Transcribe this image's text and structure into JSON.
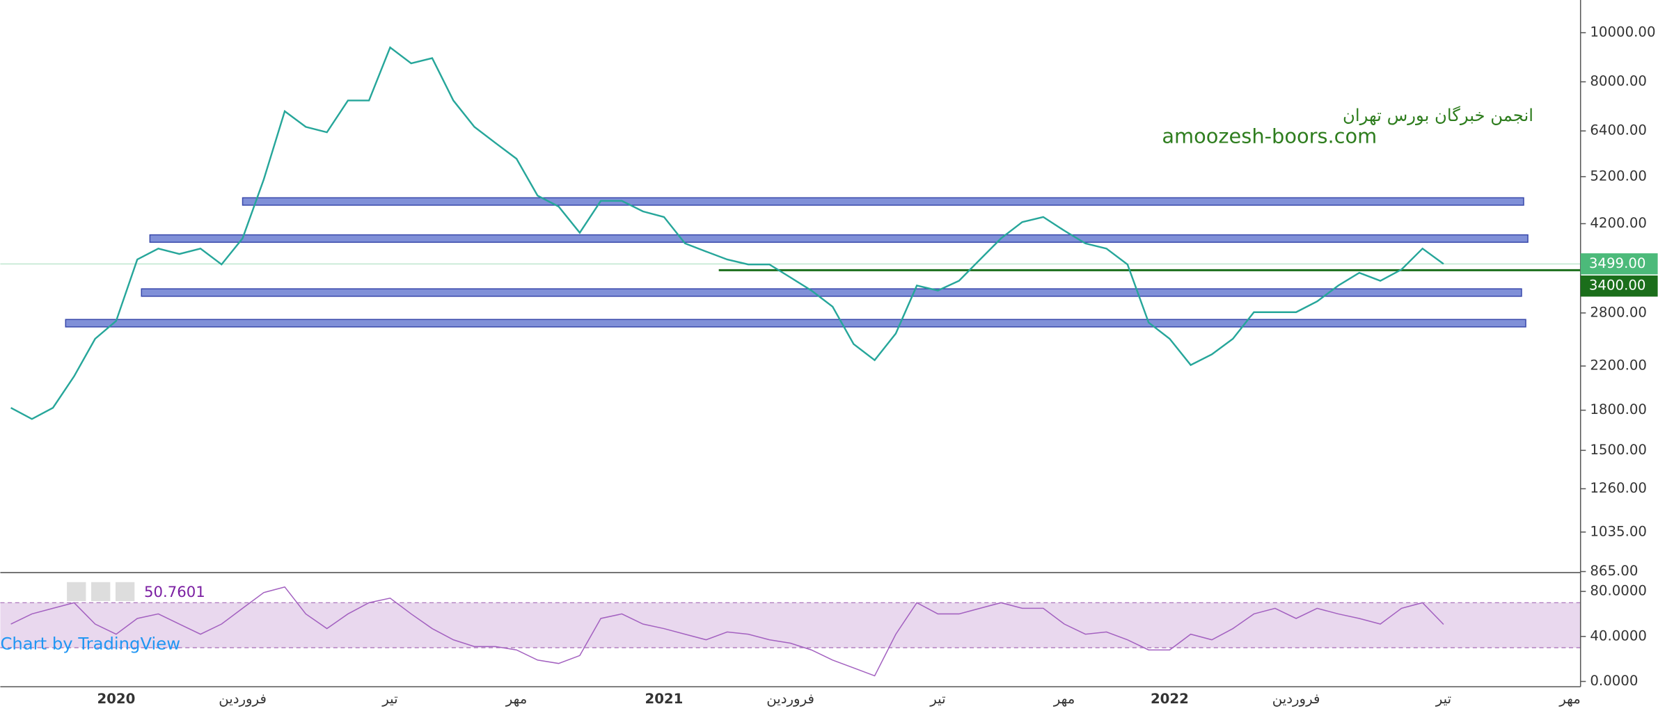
{
  "chart_data": [
    {
      "type": "line",
      "log_scale": true,
      "color": "#26a69a",
      "categories": [
        null,
        null,
        null,
        null,
        null,
        "2020",
        null,
        null,
        null,
        null,
        null,
        "فروردین",
        null,
        null,
        null,
        null,
        null,
        null,
        "تیر",
        null,
        null,
        null,
        null,
        null,
        "مهر",
        null,
        null,
        null,
        null,
        null,
        null,
        "2021",
        null,
        null,
        null,
        null,
        null,
        "فروردین",
        null,
        null,
        null,
        null,
        null,
        null,
        "تیر",
        null,
        null,
        null,
        null,
        null,
        "مهر",
        null,
        null,
        null,
        null,
        "2022",
        null,
        null,
        null,
        null,
        null,
        "فروردین",
        null,
        null,
        null,
        null,
        null,
        null,
        "تیر",
        null,
        null,
        null,
        null,
        null,
        "مهر"
      ],
      "values": [
        1820,
        1730,
        1820,
        2100,
        2490,
        2700,
        3570,
        3750,
        3660,
        3750,
        3490,
        3930,
        5130,
        7000,
        6520,
        6360,
        7350,
        7350,
        9350,
        8700,
        8910,
        7350,
        6520,
        6060,
        5640,
        4770,
        4540,
        4030,
        4660,
        4660,
        4440,
        4330,
        3840,
        3700,
        3570,
        3490,
        3490,
        3290,
        3100,
        2880,
        2430,
        2260,
        2550,
        3170,
        3100,
        3240,
        3570,
        3930,
        4230,
        4330,
        4070,
        3840,
        3750,
        3490,
        2680,
        2490,
        2210,
        2320,
        2490,
        2810,
        2810,
        2810,
        2950,
        3170,
        3360,
        3240,
        3410,
        3750,
        3499,
        null,
        null,
        null,
        null,
        null,
        null
      ],
      "ylim": [
        865,
        11600
      ],
      "yticks": [
        {
          "value": 10000,
          "label": "10000.00"
        },
        {
          "value": 8000,
          "label": "8000.00"
        },
        {
          "value": 6400,
          "label": "6400.00"
        },
        {
          "value": 5200,
          "label": "5200.00"
        },
        {
          "value": 4200,
          "label": "4200.00"
        },
        {
          "value": 2800,
          "label": "2800.00"
        },
        {
          "value": 2200,
          "label": "2200.00"
        },
        {
          "value": 1800,
          "label": "1800.00"
        },
        {
          "value": 1500,
          "label": "1500.00"
        },
        {
          "value": 1260,
          "label": "1260.00"
        },
        {
          "value": 1035,
          "label": "1035.00"
        },
        {
          "value": 865,
          "label": "865.00"
        }
      ],
      "zones": [
        {
          "low": 4568,
          "high": 4724,
          "start": 11.5,
          "end": 72.3
        },
        {
          "low": 3860,
          "high": 3992,
          "start": 7.1,
          "end": 72.5
        },
        {
          "low": 3020,
          "high": 3124,
          "start": 6.7,
          "end": 72.2
        },
        {
          "low": 2628,
          "high": 2718,
          "start": 3.1,
          "end": 72.4
        }
      ],
      "zone_color": "#8090d8",
      "level_line": {
        "value": 3400,
        "start": 34.1,
        "color": "#1b6e1b"
      },
      "price_labels": [
        {
          "value": 3499,
          "label": "3499.00",
          "color": "#4cba7a"
        },
        {
          "value": 3400,
          "label": "3400.00",
          "color": "#1b6e1b"
        }
      ],
      "annotations": [
        "انجمن خبرگان بورس تهران",
        "amoozesh-boors.com"
      ],
      "watermark": "Chart by TradingView"
    },
    {
      "type": "line",
      "color": "#a361c0",
      "values": [
        51,
        60,
        65,
        70,
        51,
        42,
        56,
        60,
        51,
        42,
        51,
        65,
        79,
        84,
        60,
        47,
        60,
        70,
        74,
        60,
        47,
        37,
        31,
        31,
        28,
        19,
        16,
        23,
        56,
        60,
        51,
        47,
        42,
        37,
        44,
        42,
        37,
        34,
        28,
        19,
        12,
        5,
        42,
        70,
        60,
        60,
        65,
        70,
        65,
        65,
        51,
        42,
        44,
        37,
        28,
        28,
        42,
        37,
        47,
        60,
        65,
        56,
        65,
        60,
        56,
        51,
        65,
        70,
        50.7601,
        null,
        null,
        null,
        null,
        null,
        null
      ],
      "ylim": [
        -2.8,
        95.8
      ],
      "yticks": [
        {
          "value": 80,
          "label": "80.0000"
        },
        {
          "value": 40,
          "label": "40.0000"
        },
        {
          "value": 0,
          "label": "0.0000"
        }
      ],
      "band": [
        30,
        70
      ]
    }
  ]
}
